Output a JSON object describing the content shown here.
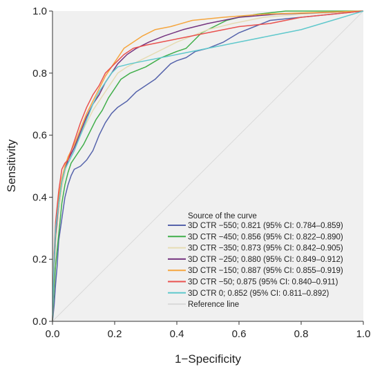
{
  "chart_data": {
    "type": "line",
    "xlabel": "1−Specificity",
    "ylabel": "Sensitivity",
    "xlim": [
      0,
      1
    ],
    "ylim": [
      0,
      1
    ],
    "x_ticks": [
      "0.0",
      "0.2",
      "0.4",
      "0.6",
      "0.8",
      "1.0"
    ],
    "y_ticks": [
      "0.0",
      "0.2",
      "0.4",
      "0.6",
      "0.8",
      "1.0"
    ],
    "grid": false,
    "legend_title": "Source of the curve",
    "legend_position": "bottom-right",
    "plot_background": "#f0f0f0",
    "series": [
      {
        "name": "3D CTR −550; 0.821 (95% CI: 0.784–0.859)",
        "color": "#5563ab",
        "points": [
          [
            0,
            0
          ],
          [
            0.005,
            0.05
          ],
          [
            0.01,
            0.12
          ],
          [
            0.015,
            0.18
          ],
          [
            0.02,
            0.26
          ],
          [
            0.03,
            0.33
          ],
          [
            0.04,
            0.4
          ],
          [
            0.05,
            0.44
          ],
          [
            0.06,
            0.47
          ],
          [
            0.07,
            0.49
          ],
          [
            0.09,
            0.5
          ],
          [
            0.11,
            0.52
          ],
          [
            0.13,
            0.55
          ],
          [
            0.15,
            0.6
          ],
          [
            0.17,
            0.64
          ],
          [
            0.19,
            0.67
          ],
          [
            0.21,
            0.69
          ],
          [
            0.24,
            0.71
          ],
          [
            0.27,
            0.74
          ],
          [
            0.3,
            0.76
          ],
          [
            0.33,
            0.78
          ],
          [
            0.36,
            0.81
          ],
          [
            0.38,
            0.83
          ],
          [
            0.4,
            0.84
          ],
          [
            0.43,
            0.85
          ],
          [
            0.46,
            0.87
          ],
          [
            0.5,
            0.88
          ],
          [
            0.55,
            0.9
          ],
          [
            0.6,
            0.93
          ],
          [
            0.65,
            0.95
          ],
          [
            0.7,
            0.97
          ],
          [
            0.8,
            0.98
          ],
          [
            0.9,
            0.99
          ],
          [
            1,
            1
          ]
        ]
      },
      {
        "name": "3D CTR −450; 0.856 (95% CI: 0.822–0.890)",
        "color": "#3fae49",
        "points": [
          [
            0,
            0
          ],
          [
            0.005,
            0.1
          ],
          [
            0.01,
            0.18
          ],
          [
            0.02,
            0.28
          ],
          [
            0.03,
            0.38
          ],
          [
            0.04,
            0.44
          ],
          [
            0.05,
            0.48
          ],
          [
            0.06,
            0.51
          ],
          [
            0.08,
            0.54
          ],
          [
            0.1,
            0.57
          ],
          [
            0.12,
            0.61
          ],
          [
            0.14,
            0.65
          ],
          [
            0.16,
            0.68
          ],
          [
            0.18,
            0.72
          ],
          [
            0.2,
            0.75
          ],
          [
            0.22,
            0.78
          ],
          [
            0.25,
            0.8
          ],
          [
            0.3,
            0.82
          ],
          [
            0.35,
            0.85
          ],
          [
            0.4,
            0.87
          ],
          [
            0.43,
            0.88
          ],
          [
            0.45,
            0.9
          ],
          [
            0.48,
            0.93
          ],
          [
            0.52,
            0.95
          ],
          [
            0.56,
            0.97
          ],
          [
            0.6,
            0.98
          ],
          [
            0.66,
            0.99
          ],
          [
            0.75,
            1.0
          ],
          [
            1,
            1
          ]
        ]
      },
      {
        "name": "3D CTR −350; 0.873 (95% CI: 0.842–0.905)",
        "color": "#e6dcb4",
        "points": [
          [
            0,
            0
          ],
          [
            0.005,
            0.15
          ],
          [
            0.01,
            0.25
          ],
          [
            0.02,
            0.35
          ],
          [
            0.03,
            0.43
          ],
          [
            0.04,
            0.48
          ],
          [
            0.05,
            0.52
          ],
          [
            0.07,
            0.56
          ],
          [
            0.09,
            0.6
          ],
          [
            0.11,
            0.64
          ],
          [
            0.13,
            0.68
          ],
          [
            0.15,
            0.71
          ],
          [
            0.17,
            0.74
          ],
          [
            0.19,
            0.77
          ],
          [
            0.21,
            0.8
          ],
          [
            0.24,
            0.82
          ],
          [
            0.28,
            0.84
          ],
          [
            0.32,
            0.86
          ],
          [
            0.36,
            0.88
          ],
          [
            0.4,
            0.9
          ],
          [
            0.45,
            0.92
          ],
          [
            0.5,
            0.94
          ],
          [
            0.58,
            0.96
          ],
          [
            0.68,
            0.98
          ],
          [
            0.8,
            0.99
          ],
          [
            1,
            1
          ]
        ]
      },
      {
        "name": "3D CTR −250; 0.880 (95% CI: 0.849–0.912)",
        "color": "#74337f",
        "points": [
          [
            0,
            0
          ],
          [
            0.005,
            0.18
          ],
          [
            0.01,
            0.28
          ],
          [
            0.02,
            0.38
          ],
          [
            0.03,
            0.45
          ],
          [
            0.04,
            0.49
          ],
          [
            0.05,
            0.52
          ],
          [
            0.07,
            0.56
          ],
          [
            0.09,
            0.61
          ],
          [
            0.11,
            0.66
          ],
          [
            0.13,
            0.7
          ],
          [
            0.15,
            0.73
          ],
          [
            0.17,
            0.77
          ],
          [
            0.19,
            0.8
          ],
          [
            0.21,
            0.83
          ],
          [
            0.24,
            0.86
          ],
          [
            0.27,
            0.88
          ],
          [
            0.31,
            0.9
          ],
          [
            0.36,
            0.92
          ],
          [
            0.42,
            0.94
          ],
          [
            0.5,
            0.96
          ],
          [
            0.6,
            0.98
          ],
          [
            0.72,
            0.99
          ],
          [
            1,
            1
          ]
        ]
      },
      {
        "name": "3D CTR −150; 0.887 (95% CI: 0.855–0.919)",
        "color": "#f5a53d",
        "points": [
          [
            0,
            0
          ],
          [
            0.005,
            0.2
          ],
          [
            0.01,
            0.3
          ],
          [
            0.02,
            0.4
          ],
          [
            0.03,
            0.46
          ],
          [
            0.04,
            0.5
          ],
          [
            0.05,
            0.53
          ],
          [
            0.07,
            0.57
          ],
          [
            0.09,
            0.62
          ],
          [
            0.11,
            0.67
          ],
          [
            0.13,
            0.71
          ],
          [
            0.15,
            0.75
          ],
          [
            0.17,
            0.79
          ],
          [
            0.19,
            0.82
          ],
          [
            0.21,
            0.85
          ],
          [
            0.23,
            0.88
          ],
          [
            0.26,
            0.9
          ],
          [
            0.29,
            0.92
          ],
          [
            0.33,
            0.94
          ],
          [
            0.38,
            0.95
          ],
          [
            0.45,
            0.97
          ],
          [
            0.55,
            0.98
          ],
          [
            0.68,
            0.99
          ],
          [
            1,
            1
          ]
        ]
      },
      {
        "name": "3D CTR −50; 0.875 (95% CI: 0.840–0.911)",
        "color": "#e9514e",
        "points": [
          [
            0,
            0
          ],
          [
            0.005,
            0.22
          ],
          [
            0.01,
            0.32
          ],
          [
            0.02,
            0.42
          ],
          [
            0.03,
            0.49
          ],
          [
            0.04,
            0.51
          ],
          [
            0.05,
            0.52
          ],
          [
            0.07,
            0.58
          ],
          [
            0.09,
            0.64
          ],
          [
            0.11,
            0.69
          ],
          [
            0.13,
            0.73
          ],
          [
            0.15,
            0.76
          ],
          [
            0.17,
            0.8
          ],
          [
            0.19,
            0.82
          ],
          [
            0.21,
            0.84
          ],
          [
            0.23,
            0.86
          ],
          [
            0.26,
            0.88
          ],
          [
            0.3,
            0.89
          ],
          [
            0.35,
            0.9
          ],
          [
            0.4,
            0.91
          ],
          [
            0.5,
            0.93
          ],
          [
            0.6,
            0.95
          ],
          [
            0.7,
            0.96
          ],
          [
            0.8,
            0.98
          ],
          [
            0.9,
            0.99
          ],
          [
            1,
            1
          ]
        ]
      },
      {
        "name": "3D CTR 0; 0.852 (95% CI: 0.811–0.892)",
        "color": "#5fc8cc",
        "points": [
          [
            0,
            0
          ],
          [
            0.005,
            0.2
          ],
          [
            0.01,
            0.3
          ],
          [
            0.02,
            0.38
          ],
          [
            0.03,
            0.45
          ],
          [
            0.04,
            0.49
          ],
          [
            0.05,
            0.51
          ],
          [
            0.07,
            0.55
          ],
          [
            0.09,
            0.6
          ],
          [
            0.11,
            0.65
          ],
          [
            0.13,
            0.7
          ],
          [
            0.15,
            0.74
          ],
          [
            0.17,
            0.77
          ],
          [
            0.19,
            0.8
          ],
          [
            0.21,
            0.82
          ],
          [
            0.25,
            0.83
          ],
          [
            0.3,
            0.84
          ],
          [
            0.4,
            0.86
          ],
          [
            0.5,
            0.88
          ],
          [
            0.6,
            0.9
          ],
          [
            0.7,
            0.92
          ],
          [
            0.8,
            0.94
          ],
          [
            0.9,
            0.97
          ],
          [
            1,
            1
          ]
        ]
      },
      {
        "name": "Reference line",
        "color": "#d9d9d9",
        "points": [
          [
            0,
            0
          ],
          [
            1,
            1
          ]
        ]
      }
    ]
  }
}
